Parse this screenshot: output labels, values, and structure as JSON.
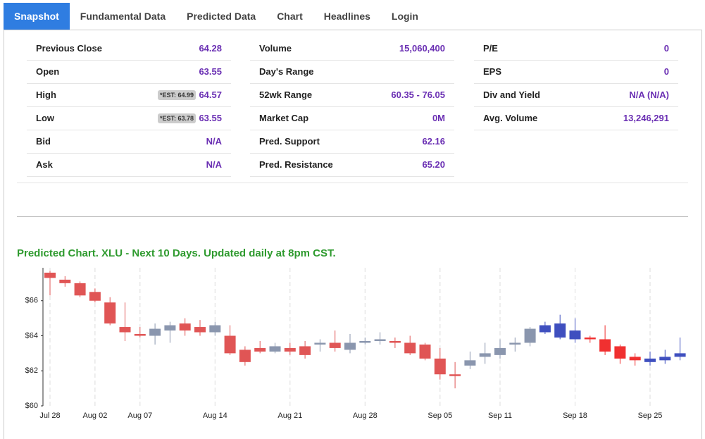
{
  "tabs": [
    "Snapshot",
    "Fundamental Data",
    "Predicted Data",
    "Chart",
    "Headlines",
    "Login"
  ],
  "active_tab": 0,
  "stats": [
    [
      {
        "label": "Previous Close",
        "value": "64.28"
      },
      {
        "label": "Open",
        "value": "63.55"
      },
      {
        "label": "High",
        "badge": "*EST: 64.99",
        "value": "64.57"
      },
      {
        "label": "Low",
        "badge": "*EST: 63.78",
        "value": "63.55"
      },
      {
        "label": "Bid",
        "value": "N/A"
      },
      {
        "label": "Ask",
        "value": "N/A"
      }
    ],
    [
      {
        "label": "Volume",
        "value": "15,060,400"
      },
      {
        "label": "Day's Range"
      },
      {
        "label": "52wk Range",
        "value": "60.35 - 76.05"
      },
      {
        "label": "Market Cap",
        "value": "0M"
      },
      {
        "label": "Pred. Support",
        "value": "62.16"
      },
      {
        "label": "Pred. Resistance",
        "value": "65.20"
      }
    ],
    [
      {
        "label": "P/E",
        "value": "0"
      },
      {
        "label": "EPS",
        "value": "0"
      },
      {
        "label": "Div and Yield",
        "value": "N/A (N/A)"
      },
      {
        "label": "Avg. Volume",
        "value": "13,246,291"
      }
    ]
  ],
  "chart_data": {
    "type": "candlestick",
    "title": "Predicted Chart. XLU - Next 10 Days. Updated daily at 8pm CST.",
    "categories": [
      "Jul 28",
      null,
      null,
      "Aug 02",
      null,
      null,
      "Aug 07",
      null,
      null,
      null,
      null,
      "Aug 14",
      null,
      null,
      null,
      null,
      "Aug 21",
      null,
      null,
      null,
      null,
      "Aug 28",
      null,
      null,
      null,
      null,
      "Sep 05",
      null,
      null,
      null,
      "Sep 11",
      null,
      null,
      null,
      null,
      "Sep 18",
      null,
      null,
      null,
      null,
      "Sep 25",
      null,
      null
    ],
    "ylim": [
      60,
      68
    ],
    "yticks": [
      {
        "value": 60,
        "label": "$60"
      },
      {
        "value": 62,
        "label": "$62"
      },
      {
        "value": 64,
        "label": "$64"
      },
      {
        "value": 66,
        "label": "$66"
      }
    ],
    "grid": true,
    "series": [
      {
        "color_up": "#8a96ae",
        "color_down": "#e05555",
        "open": [
          67.6,
          67.2,
          67.0,
          66.5,
          65.9,
          64.5,
          64.1,
          64.0,
          64.3,
          64.7,
          64.5,
          64.2,
          64.0,
          63.2,
          63.3,
          63.1,
          63.3,
          63.4,
          63.5,
          63.6,
          63.2,
          63.6,
          63.7,
          63.7,
          63.6,
          63.5,
          62.7,
          61.8,
          62.3,
          62.8,
          62.9,
          63.5,
          63.6,
          null,
          null,
          null,
          null,
          null,
          null,
          null,
          null,
          null,
          null
        ],
        "high": [
          67.7,
          67.4,
          67.1,
          66.7,
          66.2,
          65.9,
          64.5,
          64.7,
          64.8,
          65.0,
          64.9,
          64.8,
          64.6,
          63.4,
          63.7,
          63.6,
          63.6,
          63.7,
          63.8,
          64.3,
          64.1,
          63.9,
          64.2,
          63.9,
          64.0,
          63.6,
          63.3,
          62.5,
          63.1,
          63.6,
          63.8,
          63.9,
          64.5,
          null,
          null,
          null,
          null,
          null,
          null,
          null,
          null,
          null,
          null
        ],
        "low": [
          66.3,
          66.8,
          66.2,
          65.9,
          64.6,
          63.7,
          63.9,
          63.5,
          63.6,
          64.0,
          64.0,
          64.0,
          62.9,
          62.3,
          63.0,
          63.0,
          62.9,
          62.7,
          63.1,
          63.1,
          63.0,
          63.5,
          63.5,
          63.3,
          62.9,
          62.6,
          61.5,
          61.0,
          62.1,
          62.4,
          62.7,
          63.1,
          63.4,
          null,
          null,
          null,
          null,
          null,
          null,
          null,
          null,
          null,
          null
        ],
        "close": [
          67.3,
          67.0,
          66.3,
          66.0,
          64.7,
          64.2,
          64.0,
          64.4,
          64.6,
          64.3,
          64.2,
          64.6,
          63.0,
          62.5,
          63.1,
          63.4,
          63.1,
          62.9,
          63.6,
          63.3,
          63.6,
          63.7,
          63.8,
          63.6,
          63.0,
          62.7,
          61.8,
          61.7,
          62.6,
          63.0,
          63.3,
          63.6,
          64.4,
          null,
          null,
          null,
          null,
          null,
          null,
          null,
          null,
          null,
          null
        ]
      },
      {
        "color_up": "#3f4fbf",
        "color_down": "#f03030",
        "open": [
          null,
          null,
          null,
          null,
          null,
          null,
          null,
          null,
          null,
          null,
          null,
          null,
          null,
          null,
          null,
          null,
          null,
          null,
          null,
          null,
          null,
          null,
          null,
          null,
          null,
          null,
          null,
          null,
          null,
          null,
          null,
          null,
          null,
          64.2,
          63.9,
          63.8,
          63.9,
          63.8,
          63.4,
          62.8,
          62.5,
          62.6,
          62.8
        ],
        "high": [
          null,
          null,
          null,
          null,
          null,
          null,
          null,
          null,
          null,
          null,
          null,
          null,
          null,
          null,
          null,
          null,
          null,
          null,
          null,
          null,
          null,
          null,
          null,
          null,
          null,
          null,
          null,
          null,
          null,
          null,
          null,
          null,
          null,
          64.8,
          65.2,
          65.0,
          64.0,
          64.6,
          63.5,
          63.0,
          63.1,
          63.2,
          63.9
        ],
        "low": [
          null,
          null,
          null,
          null,
          null,
          null,
          null,
          null,
          null,
          null,
          null,
          null,
          null,
          null,
          null,
          null,
          null,
          null,
          null,
          null,
          null,
          null,
          null,
          null,
          null,
          null,
          null,
          null,
          null,
          null,
          null,
          null,
          null,
          64.1,
          63.8,
          63.6,
          63.6,
          62.9,
          62.4,
          62.3,
          62.3,
          62.4,
          62.6
        ],
        "close": [
          null,
          null,
          null,
          null,
          null,
          null,
          null,
          null,
          null,
          null,
          null,
          null,
          null,
          null,
          null,
          null,
          null,
          null,
          null,
          null,
          null,
          null,
          null,
          null,
          null,
          null,
          null,
          null,
          null,
          null,
          null,
          null,
          null,
          64.6,
          64.7,
          64.3,
          63.8,
          63.1,
          62.7,
          62.6,
          62.7,
          62.8,
          63.0
        ]
      }
    ]
  }
}
